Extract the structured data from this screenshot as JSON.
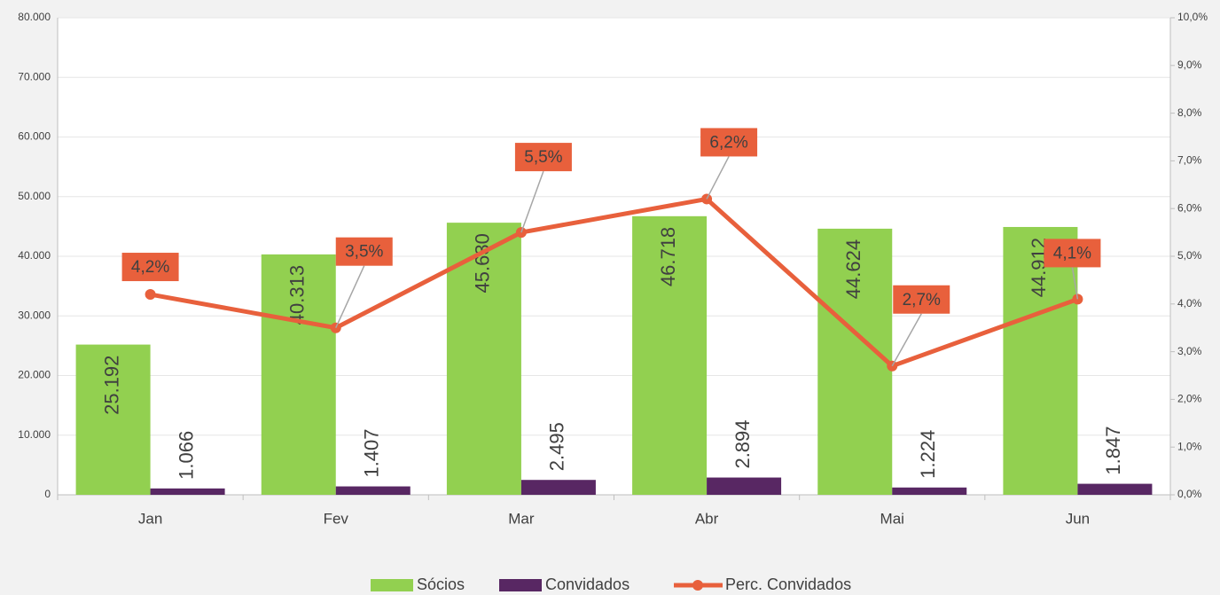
{
  "chart_data": {
    "type": "bar-line",
    "categories": [
      "Jan",
      "Fev",
      "Mar",
      "Abr",
      "Mai",
      "Jun"
    ],
    "series": [
      {
        "name": "Sócios",
        "type": "bar",
        "color": "#92d050",
        "values": [
          25192,
          40313,
          45630,
          46718,
          44624,
          44912
        ],
        "value_labels": [
          "25.192",
          "40.313",
          "45.630",
          "46.718",
          "44.624",
          "44.912"
        ]
      },
      {
        "name": "Convidados",
        "type": "bar",
        "color": "#582763",
        "values": [
          1066,
          1407,
          2495,
          2894,
          1224,
          1847
        ],
        "value_labels": [
          "1.066",
          "1.407",
          "2.495",
          "2.894",
          "1.224",
          "1.847"
        ]
      },
      {
        "name": "Perc. Convidados",
        "type": "line",
        "axis": "y2",
        "color": "#e8603c",
        "values": [
          4.2,
          3.5,
          5.5,
          6.2,
          2.7,
          4.1
        ],
        "value_labels": [
          "4,2%",
          "3,5%",
          "5,5%",
          "6,2%",
          "2,7%",
          "4,1%"
        ]
      }
    ],
    "ylim": [
      0,
      80000
    ],
    "yticks": [
      0,
      {
        "value": 10000,
        "label": "10.000"
      },
      {
        "value": 20000,
        "label": "20.000"
      },
      {
        "value": 30000,
        "label": "30.000"
      },
      {
        "value": 40000,
        "label": "40.000"
      },
      {
        "value": 50000,
        "label": "50.000"
      },
      {
        "value": 60000,
        "label": "60.000"
      },
      {
        "value": 70000,
        "label": "70.000"
      },
      {
        "value": 80000,
        "label": "80.000"
      }
    ],
    "y2lim": [
      0,
      10
    ],
    "y2ticks": [
      {
        "value": 0,
        "label": "0,0%"
      },
      {
        "value": 1,
        "label": "1,0%"
      },
      {
        "value": 2,
        "label": "2,0%"
      },
      {
        "value": 3,
        "label": "3,0%"
      },
      {
        "value": 4,
        "label": "4,0%"
      },
      {
        "value": 5,
        "label": "5,0%"
      },
      {
        "value": 6,
        "label": "6,0%"
      },
      {
        "value": 7,
        "label": "7,0%"
      },
      {
        "value": 8,
        "label": "8,0%"
      },
      {
        "value": 9,
        "label": "9,0%"
      },
      {
        "value": 10,
        "label": "10,0%"
      }
    ],
    "grid": true,
    "legend": "bottom"
  }
}
